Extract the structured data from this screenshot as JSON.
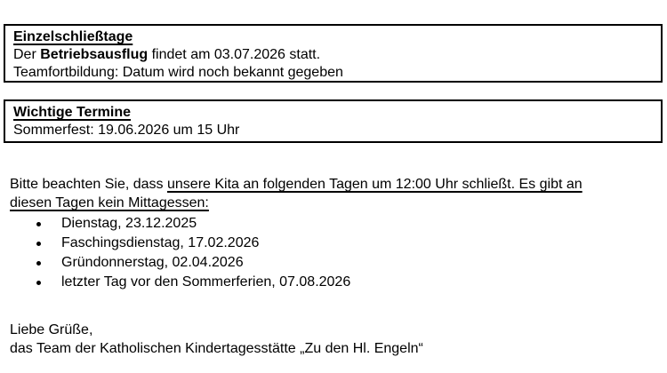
{
  "colors": {
    "text": "#000000",
    "background": "#ffffff",
    "box_border": "#000000"
  },
  "document": {
    "box_einzelschliesstage": {
      "heading": "Einzelschließtage",
      "line1_prefix": "Der ",
      "line1_bold": "Betriebsausflug",
      "line1_suffix": " findet am 03.07.2026 statt.",
      "line2": "Teamfortbildung: Datum wird noch bekannt gegeben"
    },
    "box_wichtige_termine": {
      "heading": "Wichtige Termine",
      "line1": "Sommerfest: 19.06.2026 um 15 Uhr"
    },
    "notice_paragraph": {
      "prefix": "Bitte beachten Sie, dass ",
      "underlined_line1": "unsere Kita an folgenden Tagen um 12:00 Uhr schließt. Es gibt an",
      "underlined_line2": "diesen Tagen kein Mittagessen:"
    },
    "closure_days": [
      "Dienstag, 23.12.2025",
      "Faschingsdienstag, 17.02.2026",
      "Gründonnerstag, 02.04.2026",
      "letzter Tag vor den Sommerferien, 07.08.2026"
    ],
    "closing": {
      "line1": "Liebe Grüße,",
      "line2": "das Team der Katholischen Kindertagesstätte „Zu den Hl. Engeln“"
    }
  }
}
